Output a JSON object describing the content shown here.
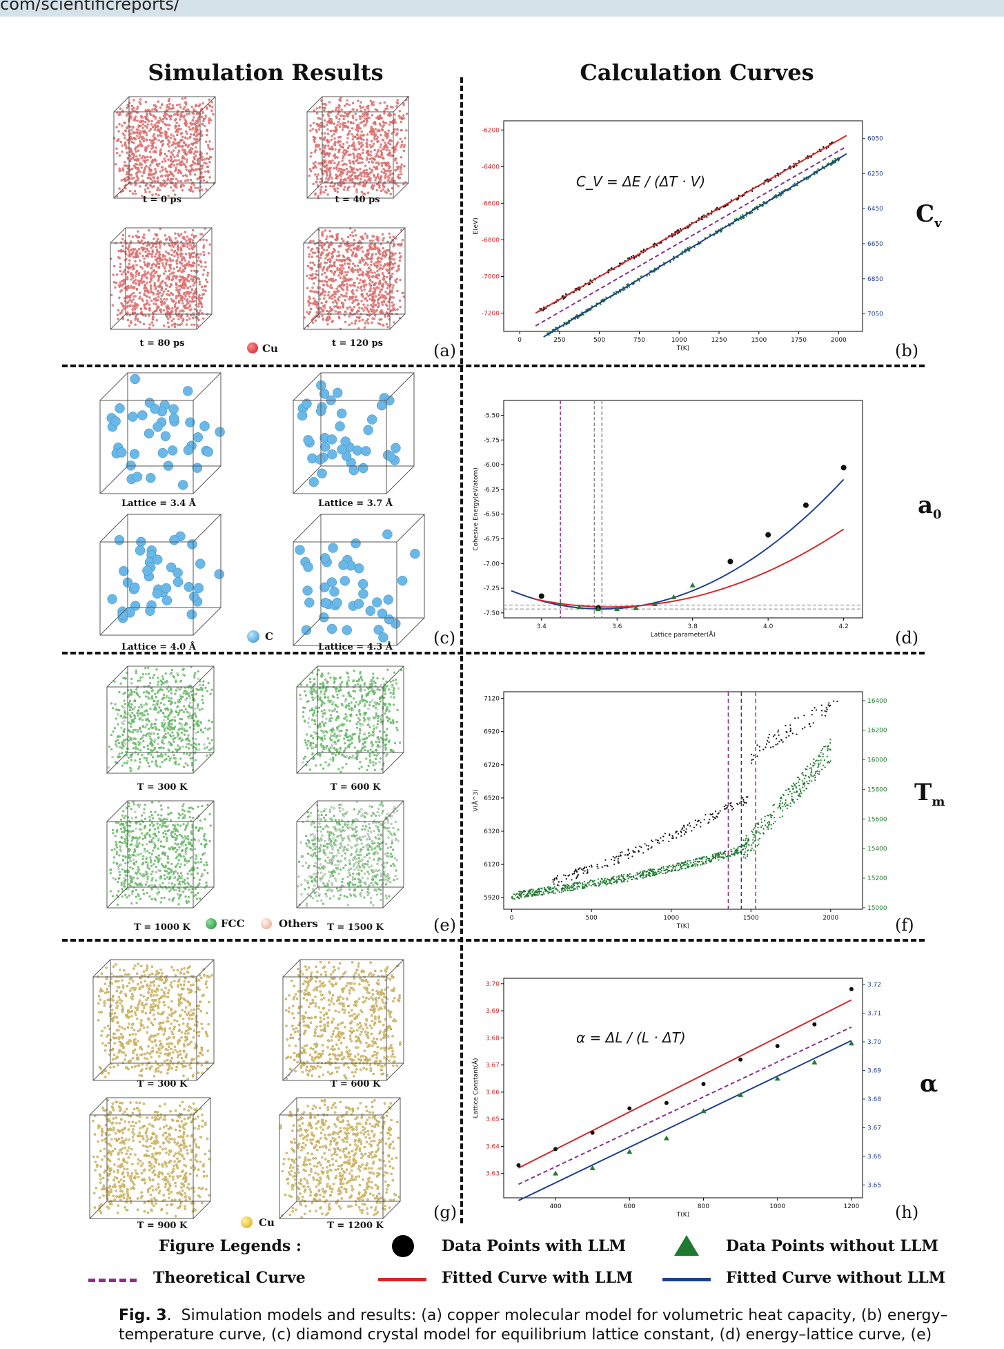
{
  "header": {
    "url_fragment": "com/scientificreports/"
  },
  "columns": {
    "left_title": "Simulation Results",
    "right_title": "Calculation Curves"
  },
  "rows": [
    {
      "left_panel_label": "(a)",
      "right_panel_label": "(b)",
      "property": "C",
      "property_sub": "v",
      "captions": [
        "t = 0 ps",
        "t = 40 ps",
        "t = 80 ps",
        "t = 120 ps"
      ],
      "legend": [
        {
          "name": "Cu",
          "color": "#c81e2a"
        }
      ]
    },
    {
      "left_panel_label": "(c)",
      "right_panel_label": "(d)",
      "property": "a",
      "property_sub": "0",
      "captions": [
        "Lattice = 3.4 Å",
        "Lattice = 3.7 Å",
        "Lattice = 4.0 Å",
        "Lattice = 4.3 Å"
      ],
      "legend": [
        {
          "name": "C",
          "color": "#3aa0d8"
        }
      ]
    },
    {
      "left_panel_label": "(e)",
      "right_panel_label": "(f)",
      "property": "T",
      "property_sub": "m",
      "captions": [
        "T = 300 K",
        "T = 600 K",
        "T = 1000 K",
        "T = 1500 K"
      ],
      "legend": [
        {
          "name": "FCC",
          "color": "#1f8a3a"
        },
        {
          "name": "Others",
          "color": "#f0b8a0"
        }
      ]
    },
    {
      "left_panel_label": "(g)",
      "right_panel_label": "(h)",
      "property": "α",
      "property_sub": "",
      "captions": [
        "T = 300 K",
        "T = 600 K",
        "T = 900 K",
        "T = 1200 K"
      ],
      "legend": [
        {
          "name": "Cu",
          "color": "#e0b40a"
        }
      ]
    }
  ],
  "figure_legends": {
    "title": "Figure Legends",
    "items": [
      {
        "label": "Data Points with LLM"
      },
      {
        "label": "Data Points without LLM"
      },
      {
        "label": "Theoretical Curve"
      },
      {
        "label": "Fitted Curve with LLM"
      },
      {
        "label": "Fitted Curve without LLM"
      }
    ]
  },
  "figure_caption": {
    "label": "Fig. 3",
    "line1": "Simulation models and results: (a) copper molecular model for volumetric heat capacity, (b) energy–",
    "line2": "temperature curve, (c) diamond crystal model for equilibrium lattice constant, (d) energy–lattice curve, (e)"
  },
  "colors": {
    "red": "#d62728",
    "blue": "#1f3f8f",
    "purple": "#8b2d8b",
    "green": "#1e7a2e",
    "black": "#111111",
    "gray": "#888888"
  },
  "chart_data": [
    {
      "id": "b",
      "type": "line",
      "equation": "C_V = ΔE / (ΔT · V)",
      "xlabel": "T(K)",
      "ylabel": "E(eV)",
      "xticks": [
        "0",
        "250",
        "500",
        "750",
        "1000",
        "1250",
        "1500",
        "1750",
        "2000"
      ],
      "yticks_left": [
        "-6200",
        "-6400",
        "-6600",
        "-6800",
        "-7000",
        "-7200"
      ],
      "yticks_right": [
        "6050",
        "6250",
        "6450",
        "6650",
        "6850",
        "7050"
      ],
      "xlim": [
        -100,
        2150
      ],
      "ylim": [
        -7300,
        -6150
      ],
      "series": [
        {
          "role": "fit_with_llm",
          "x": [
            100,
            2050
          ],
          "y": [
            -7200,
            -6230
          ]
        },
        {
          "role": "theoretical",
          "x": [
            100,
            2050
          ],
          "y": [
            -7270,
            -6290
          ]
        },
        {
          "role": "fit_without_llm",
          "x": [
            150,
            2050
          ],
          "y": [
            -7330,
            -6330
          ]
        }
      ]
    },
    {
      "id": "d",
      "type": "line",
      "xlabel": "Lattice parameter(Å)",
      "ylabel": "Cohesive Energy(eV/atom)",
      "xticks": [
        "3.4",
        "3.6",
        "3.8",
        "4.0",
        "4.2"
      ],
      "yticks_left": [
        "-5.50",
        "-5.75",
        "-6.00",
        "-6.25",
        "-6.50",
        "-6.75",
        "-7.00",
        "-7.25",
        "-7.50"
      ],
      "xlim": [
        3.3,
        4.25
      ],
      "ylim": [
        -7.55,
        -5.35
      ],
      "points_with_llm": {
        "x": [
          3.4,
          3.55,
          3.9,
          4.0,
          4.1,
          4.2
        ],
        "y": [
          -7.33,
          -7.45,
          -6.98,
          -6.71,
          -6.41,
          -6.03
        ]
      },
      "points_without_llm": {
        "x": [
          3.45,
          3.5,
          3.55,
          3.6,
          3.65,
          3.7,
          3.75,
          3.8
        ],
        "y": [
          -7.41,
          -7.44,
          -7.46,
          -7.46,
          -7.45,
          -7.41,
          -7.34,
          -7.22
        ]
      },
      "vlines": [
        {
          "role": "theoretical",
          "x": 3.45
        },
        {
          "role": "ref",
          "x": 3.54
        },
        {
          "role": "ref",
          "x": 3.56
        }
      ],
      "hlines": [
        -7.42,
        -7.46
      ]
    },
    {
      "id": "f",
      "type": "scatter",
      "xlabel": "T(K)",
      "ylabel": "V(Å^3)",
      "xticks": [
        "0",
        "500",
        "1000",
        "1500",
        "2000"
      ],
      "yticks_left": [
        "7120",
        "6920",
        "6720",
        "6520",
        "6320",
        "6120",
        "5920"
      ],
      "yticks_right": [
        "16400",
        "16200",
        "16000",
        "15800",
        "15600",
        "15400",
        "15200",
        "15000"
      ],
      "xlim": [
        -50,
        2200
      ],
      "ylim": [
        5850,
        7160
      ],
      "vlines": [
        {
          "role": "theoretical",
          "x": 1358
        },
        {
          "role": "fit_without_llm",
          "x": 1440
        },
        {
          "role": "fit_with_llm",
          "x": 1530
        }
      ]
    },
    {
      "id": "h",
      "type": "line",
      "equation": "α = ΔL / (L · ΔT)",
      "xlabel": "T(K)",
      "ylabel": "Lattice Constant(Å)",
      "xticks": [
        "400",
        "600",
        "800",
        "1000",
        "1200"
      ],
      "yticks_left": [
        "3.70",
        "3.69",
        "3.68",
        "3.67",
        "3.66",
        "3.65",
        "3.64",
        "3.63"
      ],
      "yticks_right": [
        "3.72",
        "3.71",
        "3.70",
        "3.69",
        "3.68",
        "3.67",
        "3.66",
        "3.65"
      ],
      "xlim": [
        260,
        1230
      ],
      "ylim": [
        3.621,
        3.702
      ],
      "points_with_llm": {
        "x": [
          300,
          400,
          500,
          600,
          700,
          800,
          900,
          1000,
          1100,
          1200
        ],
        "y": [
          3.633,
          3.639,
          3.645,
          3.654,
          3.656,
          3.663,
          3.672,
          3.677,
          3.685,
          3.698
        ]
      },
      "points_without_llm": {
        "x": [
          400,
          500,
          600,
          700,
          800,
          900,
          1000,
          1100,
          1200
        ],
        "y": [
          3.63,
          3.632,
          3.638,
          3.643,
          3.653,
          3.659,
          3.665,
          3.671,
          3.678
        ]
      },
      "series": [
        {
          "role": "fit_with_llm",
          "x": [
            300,
            1200
          ],
          "y": [
            3.632,
            3.694
          ]
        },
        {
          "role": "theoretical",
          "x": [
            300,
            1200
          ],
          "y": [
            3.626,
            3.684
          ]
        },
        {
          "role": "fit_without_llm",
          "x": [
            300,
            1200
          ],
          "y": [
            3.62,
            3.679
          ]
        }
      ]
    }
  ]
}
